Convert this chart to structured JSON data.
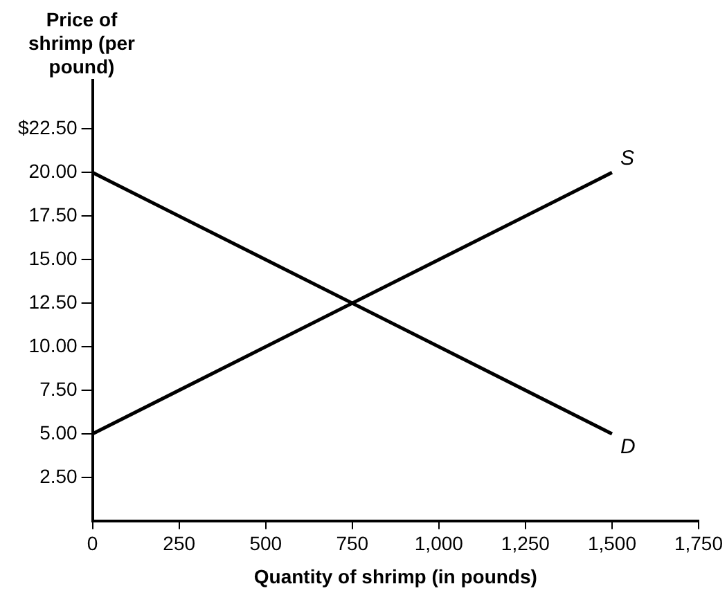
{
  "chart_data": {
    "type": "line",
    "xlabel": "Quantity of shrimp (in pounds)",
    "ylabel": "Price of shrimp (per pound)",
    "series": [
      {
        "color": "#000000",
        "x": [
          0,
          500,
          1500
        ],
        "values": [
          20,
          15,
          5
        ]
      },
      {
        "color": "#000000",
        "x": [
          0,
          1000,
          1500
        ],
        "values": [
          5,
          15,
          20
        ]
      }
    ],
    "xlim": [
      0,
      1750
    ],
    "xticks": [
      0,
      250,
      500,
      750,
      {
        "value": 1000,
        "label": "1,000"
      },
      {
        "value": 1250,
        "label": "1,250"
      },
      {
        "value": 1500,
        "label": "1,500"
      },
      {
        "value": 1750,
        "label": "1,750"
      }
    ],
    "ylim": [
      0,
      29
    ],
    "yticks": [
      {
        "value": 2.5,
        "label": "2.50"
      },
      {
        "value": 5,
        "label": "5.00"
      },
      {
        "value": 7.5,
        "label": "7.50"
      },
      {
        "value": 10,
        "label": "10.00"
      },
      {
        "value": 12.5,
        "label": "12.50"
      },
      {
        "value": 15,
        "label": "15.00"
      },
      {
        "value": 17.5,
        "label": "17.50"
      },
      {
        "value": 20,
        "label": "20.00"
      },
      {
        "value": 22.5,
        "label": "$22.50"
      }
    ],
    "annotations": [
      {
        "text": "S",
        "x": 1500,
        "y": 20
      },
      {
        "text": "D",
        "x": 1500,
        "y": 5
      }
    ],
    "marker": "none",
    "line_style": "solid",
    "legend": false,
    "grid": false
  }
}
